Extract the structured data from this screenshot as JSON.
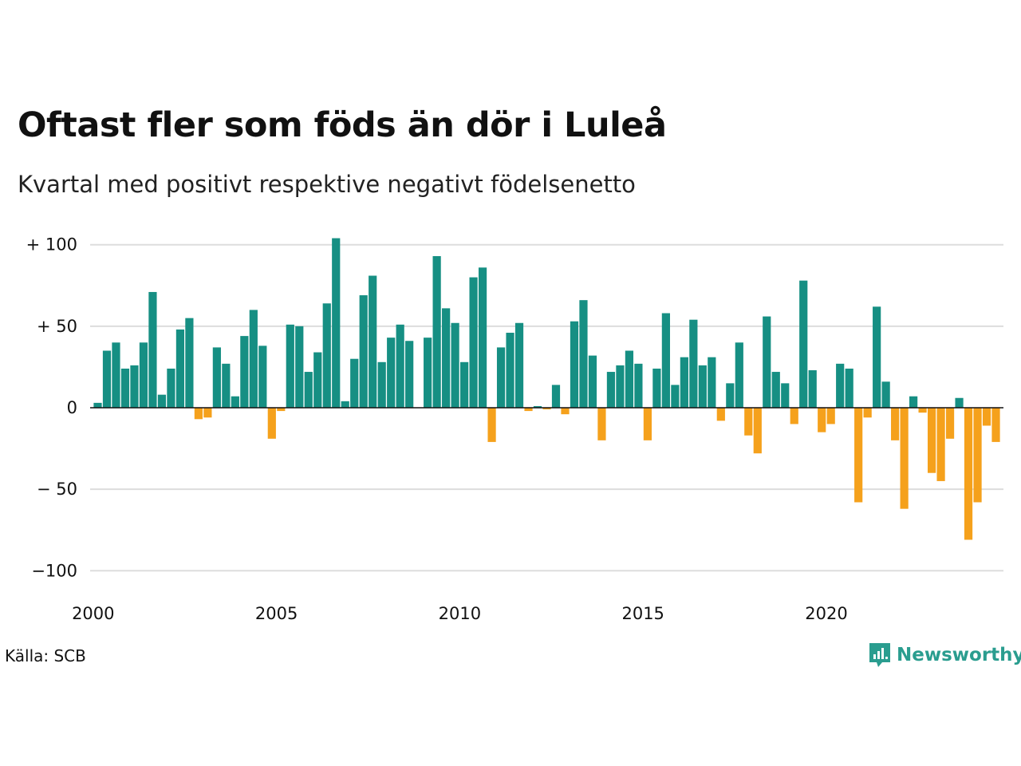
{
  "title": "Oftast fler som föds än dör i Luleå",
  "subtitle": "Kvartal med positivt respektive negativt födelsenetto",
  "source": "Källa: SCB",
  "brand": {
    "name": "Newsworthy",
    "icon": "newsworthy-logo-icon"
  },
  "colors": {
    "positive": "#168f83",
    "negative": "#f5a11c",
    "grid": "#dddddd",
    "zero": "#111111"
  },
  "chart_data": {
    "type": "bar",
    "title": "Oftast fler som föds än dör i Luleå",
    "subtitle": "Kvartal med positivt respektive negativt födelsenetto",
    "xlabel": "",
    "ylabel": "",
    "ylim": [
      -100,
      100
    ],
    "y_ticks": [
      {
        "value": 100,
        "label": "+ 100"
      },
      {
        "value": 50,
        "label": "+  50"
      },
      {
        "value": 0,
        "label": "0"
      },
      {
        "value": -50,
        "label": "− 50"
      },
      {
        "value": -100,
        "label": "−100"
      }
    ],
    "x_ticks": [
      "2000",
      "2005",
      "2010",
      "2015",
      "2020"
    ],
    "start_year": 2000,
    "grid": true,
    "quarter_values": [
      3,
      35,
      40,
      24,
      26,
      40,
      71,
      8,
      24,
      48,
      55,
      -7,
      -6,
      37,
      27,
      7,
      44,
      60,
      38,
      -19,
      -2,
      51,
      50,
      22,
      34,
      64,
      104,
      4,
      30,
      69,
      81,
      28,
      43,
      51,
      41,
      0,
      43,
      93,
      61,
      52,
      28,
      80,
      86,
      -21,
      37,
      46,
      52,
      -2,
      1,
      -1,
      14,
      -4,
      53,
      66,
      32,
      -20,
      22,
      26,
      35,
      27,
      -20,
      24,
      58,
      14,
      31,
      54,
      26,
      31,
      -8,
      15,
      40,
      -17,
      -28,
      56,
      22,
      15,
      -10,
      78,
      23,
      -15,
      -10,
      27,
      24,
      -58,
      -6,
      62,
      16,
      -20,
      -62,
      7,
      -3,
      -40,
      -45,
      -19,
      6,
      -81,
      -58,
      -11,
      -21
    ]
  }
}
